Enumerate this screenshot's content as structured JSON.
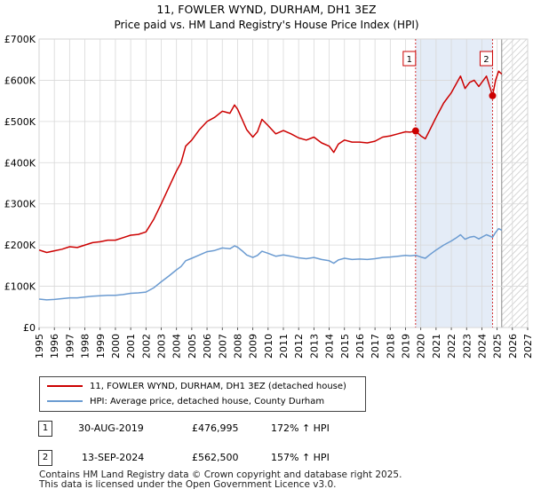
{
  "chart_data": {
    "type": "line",
    "title": "11, FOWLER WYND, DURHAM, DH1 3EZ",
    "subtitle": "Price paid vs. HM Land Registry's House Price Index (HPI)",
    "ylim": [
      0,
      700000
    ],
    "xlim": [
      1995,
      2027
    ],
    "y_ticks": [
      0,
      100000,
      200000,
      300000,
      400000,
      500000,
      600000,
      700000
    ],
    "y_tick_labels": [
      "£0",
      "£100K",
      "£200K",
      "£300K",
      "£400K",
      "£500K",
      "£600K",
      "£700K"
    ],
    "x_ticks": [
      1995,
      1996,
      1997,
      1998,
      1999,
      2000,
      2001,
      2002,
      2003,
      2004,
      2005,
      2006,
      2007,
      2008,
      2009,
      2010,
      2011,
      2012,
      2013,
      2014,
      2015,
      2016,
      2017,
      2018,
      2019,
      2020,
      2021,
      2022,
      2023,
      2024,
      2025,
      2026,
      2027
    ],
    "grid": true,
    "shaded_span": [
      2019.66,
      2024.7
    ],
    "forecast_from": 2025.3,
    "series": [
      {
        "name": "11, FOWLER WYND, DURHAM, DH1 3EZ (detached house)",
        "color": "#cc0000",
        "x": [
          1995.0,
          1995.5,
          1996.0,
          1996.5,
          1997.0,
          1997.5,
          1998.0,
          1998.5,
          1999.0,
          1999.5,
          2000.0,
          2000.5,
          2001.0,
          2001.5,
          2002.0,
          2002.5,
          2003.0,
          2003.5,
          2004.0,
          2004.3,
          2004.6,
          2005.0,
          2005.5,
          2006.0,
          2006.5,
          2007.0,
          2007.5,
          2007.8,
          2008.0,
          2008.3,
          2008.6,
          2009.0,
          2009.3,
          2009.6,
          2010.0,
          2010.5,
          2011.0,
          2011.5,
          2012.0,
          2012.5,
          2013.0,
          2013.5,
          2014.0,
          2014.3,
          2014.6,
          2015.0,
          2015.5,
          2016.0,
          2016.5,
          2017.0,
          2017.5,
          2018.0,
          2018.5,
          2019.0,
          2019.3,
          2019.66,
          2020.0,
          2020.3,
          2020.6,
          2021.0,
          2021.5,
          2022.0,
          2022.3,
          2022.6,
          2022.9,
          2023.2,
          2023.5,
          2023.8,
          2024.0,
          2024.3,
          2024.7,
          2024.9,
          2025.1,
          2025.3
        ],
        "values": [
          188000,
          182000,
          186000,
          190000,
          196000,
          194000,
          200000,
          206000,
          208000,
          212000,
          212000,
          218000,
          224000,
          226000,
          232000,
          262000,
          300000,
          340000,
          380000,
          400000,
          440000,
          455000,
          480000,
          500000,
          510000,
          525000,
          520000,
          540000,
          530000,
          505000,
          480000,
          462000,
          475000,
          505000,
          490000,
          470000,
          478000,
          470000,
          460000,
          455000,
          462000,
          448000,
          440000,
          425000,
          445000,
          455000,
          450000,
          450000,
          448000,
          452000,
          462000,
          465000,
          470000,
          475000,
          474000,
          476995,
          465000,
          458000,
          480000,
          510000,
          545000,
          570000,
          590000,
          610000,
          580000,
          595000,
          600000,
          585000,
          595000,
          610000,
          562500,
          600000,
          622000,
          615000
        ]
      },
      {
        "name": "HPI: Average price, detached house, County Durham",
        "color": "#6b9bd1",
        "x": [
          1995.0,
          1995.5,
          1996.0,
          1996.5,
          1997.0,
          1997.5,
          1998.0,
          1998.5,
          1999.0,
          1999.5,
          2000.0,
          2000.5,
          2001.0,
          2001.5,
          2002.0,
          2002.5,
          2003.0,
          2003.5,
          2004.0,
          2004.3,
          2004.6,
          2005.0,
          2005.5,
          2006.0,
          2006.5,
          2007.0,
          2007.5,
          2007.8,
          2008.0,
          2008.3,
          2008.6,
          2009.0,
          2009.3,
          2009.6,
          2010.0,
          2010.5,
          2011.0,
          2011.5,
          2012.0,
          2012.5,
          2013.0,
          2013.5,
          2014.0,
          2014.3,
          2014.6,
          2015.0,
          2015.5,
          2016.0,
          2016.5,
          2017.0,
          2017.5,
          2018.0,
          2018.5,
          2019.0,
          2019.3,
          2019.66,
          2020.0,
          2020.3,
          2020.6,
          2021.0,
          2021.5,
          2022.0,
          2022.3,
          2022.6,
          2022.9,
          2023.2,
          2023.5,
          2023.8,
          2024.0,
          2024.3,
          2024.7,
          2024.9,
          2025.1,
          2025.3
        ],
        "values": [
          69000,
          67000,
          68000,
          70000,
          72000,
          72000,
          74000,
          76000,
          77000,
          78000,
          78000,
          80000,
          83000,
          84000,
          86000,
          96000,
          111000,
          125000,
          140000,
          148000,
          162000,
          168000,
          176000,
          184000,
          187000,
          193000,
          191000,
          198000,
          195000,
          186000,
          176000,
          170000,
          175000,
          185000,
          180000,
          173000,
          176000,
          173000,
          169000,
          167000,
          170000,
          165000,
          162000,
          156000,
          164000,
          168000,
          165000,
          166000,
          165000,
          167000,
          170000,
          171000,
          173000,
          175000,
          174000,
          175400,
          171000,
          168000,
          177000,
          188000,
          200000,
          210000,
          217000,
          225000,
          214000,
          219000,
          221000,
          215000,
          219000,
          225000,
          219000,
          231000,
          240000,
          236000
        ]
      }
    ],
    "annotations": [
      {
        "label": "1",
        "x": 2019.66,
        "y": 476995
      },
      {
        "label": "2",
        "x": 2024.7,
        "y": 562500
      }
    ]
  },
  "legend": {
    "items": [
      {
        "label": "11, FOWLER WYND, DURHAM, DH1 3EZ (detached house)",
        "color": "#cc0000"
      },
      {
        "label": "HPI: Average price, detached house, County Durham",
        "color": "#6b9bd1"
      }
    ]
  },
  "transactions": [
    {
      "num": "1",
      "date": "30-AUG-2019",
      "price": "£476,995",
      "hpi": "172% ↑ HPI"
    },
    {
      "num": "2",
      "date": "13-SEP-2024",
      "price": "£562,500",
      "hpi": "157% ↑ HPI"
    }
  ],
  "footer": {
    "line1": "Contains HM Land Registry data © Crown copyright and database right 2025.",
    "line2": "This data is licensed under the Open Government Licence v3.0."
  }
}
